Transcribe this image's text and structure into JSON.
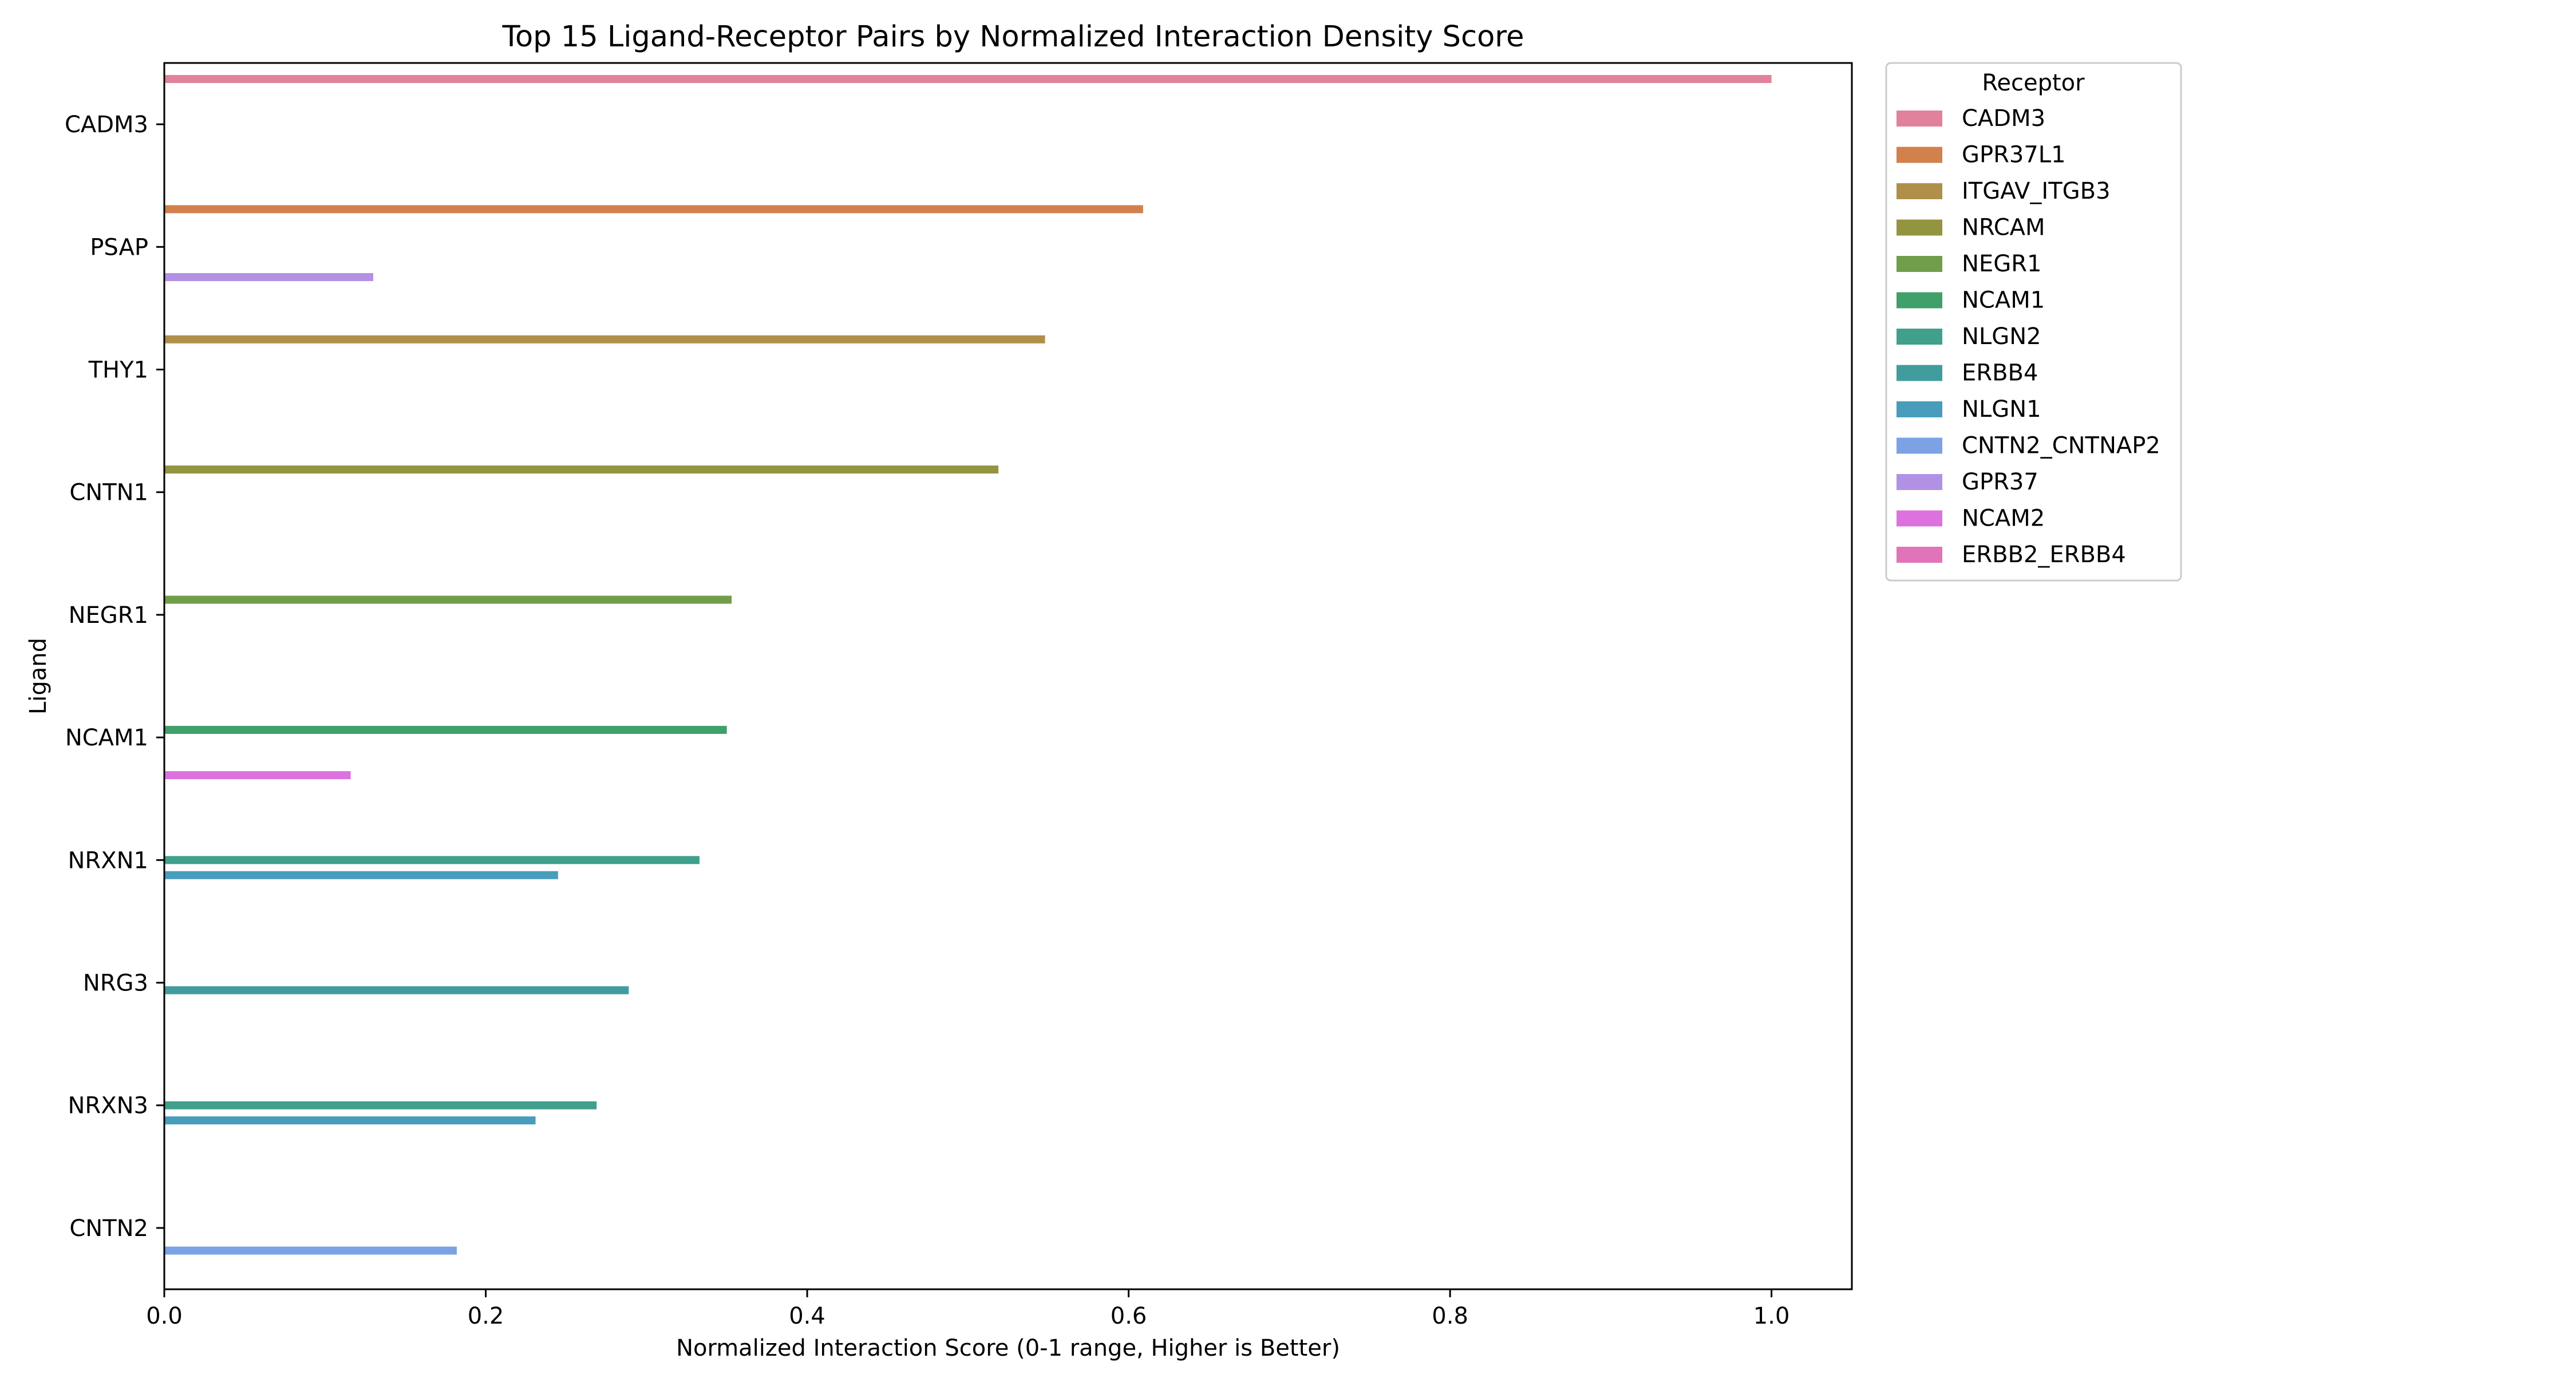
{
  "chart_data": {
    "type": "bar",
    "orientation": "horizontal",
    "title": "Top 15 Ligand-Receptor Pairs by Normalized Interaction Density Score",
    "xlabel": "Normalized Interaction Score (0-1 range, Higher is Better)",
    "ylabel": "Ligand",
    "xlim": [
      0,
      1.05
    ],
    "xticks": [
      0.0,
      0.2,
      0.4,
      0.6,
      0.8,
      1.0
    ],
    "xtick_labels": [
      "0.0",
      "0.2",
      "0.4",
      "0.6",
      "0.8",
      "1.0"
    ],
    "grid": false,
    "categories": [
      "CADM3",
      "PSAP",
      "THY1",
      "CNTN1",
      "NEGR1",
      "NCAM1",
      "NRXN1",
      "NRG3",
      "NRXN3",
      "CNTN2"
    ],
    "legend": {
      "title": "Receptor",
      "placement": "outside right, top"
    },
    "series": [
      {
        "name": "CADM3",
        "color": "#e1829a",
        "values": [
          1.0,
          null,
          null,
          null,
          null,
          null,
          null,
          null,
          null,
          null
        ]
      },
      {
        "name": "GPR37L1",
        "color": "#d2804c",
        "values": [
          null,
          0.609,
          null,
          null,
          null,
          null,
          null,
          null,
          null,
          null
        ]
      },
      {
        "name": "ITGAV_ITGB3",
        "color": "#b08f4b",
        "values": [
          null,
          null,
          0.548,
          null,
          null,
          null,
          null,
          null,
          null,
          null
        ]
      },
      {
        "name": "NRCAM",
        "color": "#93943f",
        "values": [
          null,
          null,
          null,
          0.519,
          null,
          null,
          null,
          null,
          null,
          null
        ]
      },
      {
        "name": "NEGR1",
        "color": "#719e4a",
        "values": [
          null,
          null,
          null,
          null,
          0.353,
          null,
          null,
          null,
          null,
          null
        ]
      },
      {
        "name": "NCAM1",
        "color": "#3fa06a",
        "values": [
          null,
          null,
          null,
          null,
          null,
          0.35,
          null,
          null,
          null,
          null
        ]
      },
      {
        "name": "NLGN2",
        "color": "#40a08c",
        "values": [
          null,
          null,
          null,
          null,
          null,
          null,
          0.333,
          null,
          0.269,
          null
        ]
      },
      {
        "name": "ERBB4",
        "color": "#419d9d",
        "values": [
          null,
          null,
          null,
          null,
          null,
          null,
          null,
          0.289,
          null,
          null
        ]
      },
      {
        "name": "NLGN1",
        "color": "#489dbd",
        "values": [
          null,
          null,
          null,
          null,
          null,
          null,
          0.245,
          null,
          0.231,
          null
        ]
      },
      {
        "name": "CNTN2_CNTNAP2",
        "color": "#7ba2e4",
        "values": [
          null,
          null,
          null,
          null,
          null,
          null,
          null,
          null,
          null,
          0.182
        ]
      },
      {
        "name": "GPR37",
        "color": "#b291e4",
        "values": [
          null,
          0.13,
          null,
          null,
          null,
          null,
          null,
          null,
          null,
          null
        ]
      },
      {
        "name": "NCAM2",
        "color": "#dd72df",
        "values": [
          null,
          null,
          null,
          null,
          null,
          0.116,
          null,
          null,
          null,
          null
        ]
      },
      {
        "name": "ERBB2_ERBB4",
        "color": "#e174b8",
        "values": [
          null,
          null,
          null,
          null,
          null,
          null,
          null,
          null,
          null,
          null
        ]
      }
    ]
  }
}
